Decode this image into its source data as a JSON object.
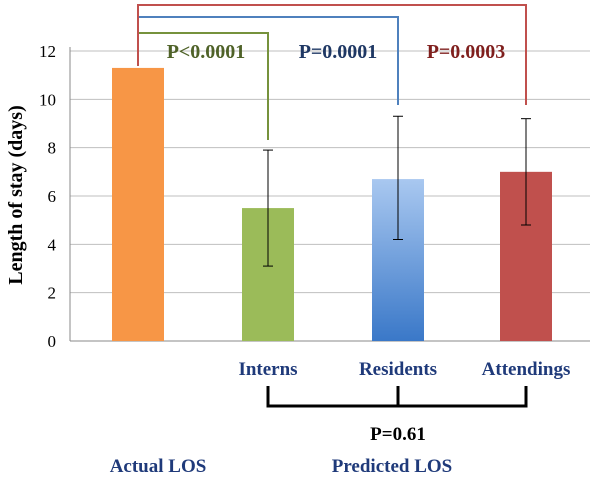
{
  "chart_data": {
    "type": "bar",
    "ylabel": "Length of stay (days)",
    "ylim": [
      0,
      12
    ],
    "yticks": [
      0,
      2,
      4,
      6,
      8,
      10,
      12
    ],
    "grid": true,
    "categories": [
      "",
      "Interns",
      "Residents",
      "Attendings"
    ],
    "values": [
      11.3,
      5.5,
      6.7,
      7.0
    ],
    "error_low": [
      null,
      3.1,
      4.2,
      4.8
    ],
    "error_high": [
      null,
      7.9,
      9.3,
      9.2
    ],
    "bar_colors": [
      "#f79646",
      "#9bbb59",
      "#4f81bd",
      "#c0504d"
    ],
    "group_labels": {
      "actual": "Actual LOS",
      "predicted": "Predicted LOS"
    },
    "comparisons": [
      {
        "from": 0,
        "to": 1,
        "label": "P<0.0001",
        "color": "#76923c",
        "text_color": "#4f6228"
      },
      {
        "from": 0,
        "to": 2,
        "label": "P=0.0001",
        "color": "#4f81bd",
        "text_color": "#1f3864"
      },
      {
        "from": 0,
        "to": 3,
        "label": "P=0.0003",
        "color": "#c0504d",
        "text_color": "#7f1f1d"
      }
    ],
    "predicted_comparison": {
      "label": "P=0.61"
    }
  }
}
